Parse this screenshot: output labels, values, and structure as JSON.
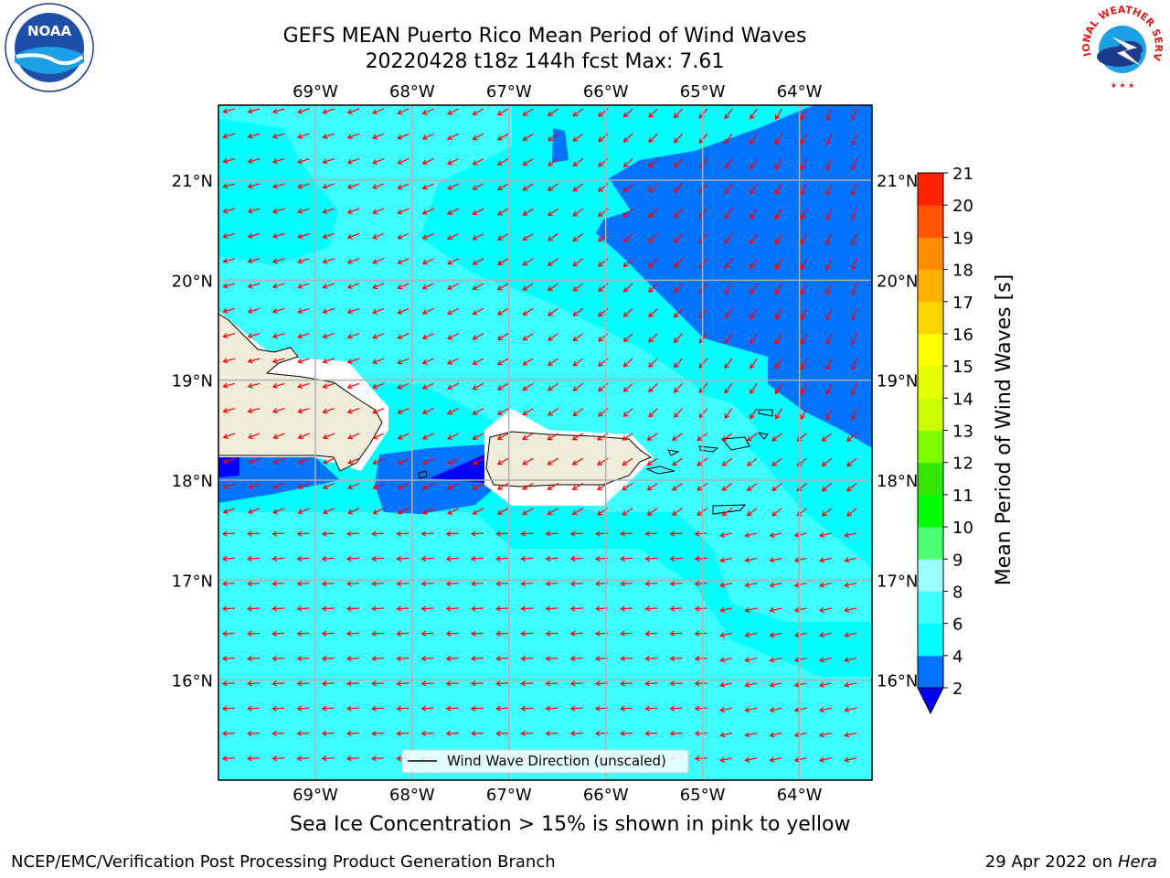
{
  "header": {
    "title_line1": "GEFS MEAN Puerto Rico Mean Period of Wind Waves",
    "title_line2": "20220428 t18z 144h fcst   Max: 7.61"
  },
  "logos": {
    "left": "noaa-logo",
    "left_text": "NOAA",
    "right": "nws-logo",
    "right_text": "NATIONAL WEATHER SERVICE"
  },
  "map": {
    "lon_labels": [
      "69°W",
      "68°W",
      "67°W",
      "66°W",
      "65°W",
      "64°W"
    ],
    "lon_values": [
      -69,
      -68,
      -67,
      -66,
      -65,
      -64
    ],
    "lat_labels": [
      "21°N",
      "20°N",
      "19°N",
      "18°N",
      "17°N",
      "16°N"
    ],
    "lat_values": [
      21,
      20,
      19,
      18,
      17,
      16
    ],
    "extent": {
      "lon_min": -70,
      "lon_max": -63.25,
      "lat_min": 15,
      "lat_max": 21.75
    },
    "legend_label": "Wind Wave Direction (unscaled)",
    "arrow_color": "#ff0000",
    "land_color": "#efedd9"
  },
  "colorbar": {
    "label": "Mean Period of Wind Waves [s]",
    "tick_labels": [
      "2",
      "4",
      "6",
      "8",
      "9",
      "10",
      "11",
      "12",
      "13",
      "14",
      "15",
      "16",
      "17",
      "18",
      "19",
      "20",
      "21"
    ],
    "colors": [
      "#0073ff",
      "#00ffff",
      "#3dffff",
      "#99ffff",
      "#4dff73",
      "#00ff00",
      "#33e600",
      "#80ff00",
      "#ccff00",
      "#e6ff00",
      "#ffff00",
      "#ffd500",
      "#ffb300",
      "#ff8c00",
      "#ff5500",
      "#ff2200"
    ],
    "extend_color": "#0000ff"
  },
  "chart_data": {
    "type": "heatmap",
    "title": "GEFS MEAN Puerto Rico Mean Period of Wind Waves",
    "subtitle": "20220428 t18z 144h fcst   Max: 7.61",
    "colorbar_label": "Mean Period of Wind Waves [s]",
    "levels": [
      2,
      4,
      6,
      8,
      9,
      10,
      11,
      12,
      13,
      14,
      15,
      16,
      17,
      18,
      19,
      20,
      21
    ],
    "max_value": 7.61,
    "x_range": [
      -70,
      -63.25
    ],
    "y_range": [
      15,
      21.75
    ],
    "grid": true
  },
  "caption": "Sea Ice Concentration > 15% is shown in pink to yellow",
  "footer": {
    "left": "NCEP/EMC/Verification Post Processing Product Generation Branch",
    "date": "29 Apr 2022 on ",
    "host": "Hera"
  }
}
